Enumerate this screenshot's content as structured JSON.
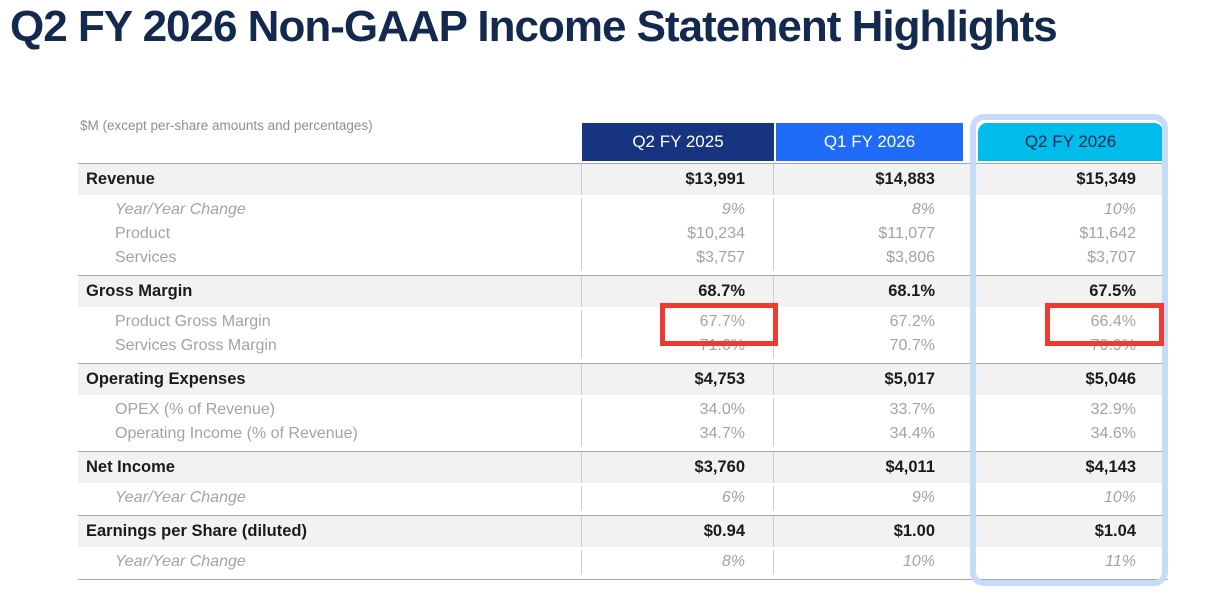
{
  "title": "Q2 FY 2026 Non-GAAP Income Statement Highlights",
  "note": "$M (except per-share amounts and percentages)",
  "table": {
    "columns": [
      "Q2 FY 2025",
      "Q1 FY 2026",
      "Q2 FY 2026"
    ],
    "highlighted_column": "Q2 FY 2026",
    "rows": [
      {
        "label": "Revenue",
        "type": "main",
        "values": [
          "$13,991",
          "$14,883",
          "$15,349"
        ]
      },
      {
        "label": "Year/Year Change",
        "type": "sub-italic",
        "values": [
          "9%",
          "8%",
          "10%"
        ]
      },
      {
        "label": "Product",
        "type": "sub",
        "values": [
          "$10,234",
          "$11,077",
          "$11,642"
        ]
      },
      {
        "label": "Services",
        "type": "sub",
        "values": [
          "$3,757",
          "$3,806",
          "$3,707"
        ]
      },
      {
        "label": "Gross Margin",
        "type": "main",
        "values": [
          "68.7%",
          "68.1%",
          "67.5%"
        ]
      },
      {
        "label": "Product Gross Margin",
        "type": "sub",
        "values": [
          "67.7%",
          "67.2%",
          "66.4%"
        ]
      },
      {
        "label": "Services Gross Margin",
        "type": "sub",
        "values": [
          "71.6%",
          "70.7%",
          "70.9%"
        ]
      },
      {
        "label": "Operating Expenses",
        "type": "main",
        "values": [
          "$4,753",
          "$5,017",
          "$5,046"
        ]
      },
      {
        "label": "OPEX (% of Revenue)",
        "type": "sub",
        "values": [
          "34.0%",
          "33.7%",
          "32.9%"
        ]
      },
      {
        "label": "Operating Income (% of Revenue)",
        "type": "sub",
        "values": [
          "34.7%",
          "34.4%",
          "34.6%"
        ]
      },
      {
        "label": "Net Income",
        "type": "main",
        "values": [
          "$3,760",
          "$4,011",
          "$4,143"
        ]
      },
      {
        "label": "Year/Year Change",
        "type": "sub-italic",
        "values": [
          "6%",
          "9%",
          "10%"
        ]
      },
      {
        "label": "Earnings per Share (diluted)",
        "type": "main",
        "values": [
          "$0.94",
          "$1.00",
          "$1.04"
        ]
      },
      {
        "label": "Year/Year Change",
        "type": "sub-italic",
        "values": [
          "8%",
          "10%",
          "11%"
        ]
      }
    ]
  },
  "annotations": {
    "red_boxes": [
      {
        "row_label": "Product Gross Margin",
        "column": "Q2 FY 2025",
        "value": "67.7%"
      },
      {
        "row_label": "Product Gross Margin",
        "column": "Q2 FY 2026",
        "value": "66.4%"
      }
    ]
  },
  "colors": {
    "title_text": "#132A4E",
    "header_q2fy2025_bg": "#16347F",
    "header_q1fy2026_bg": "#1E6BF8",
    "header_q2fy2026_bg": "#00BCEB",
    "header_q2fy2026_text": "#0D2A4D",
    "highlight_column_border": "#C6DBF8",
    "red_box_border": "#EE3B30",
    "main_row_bg": "#F2F2F2",
    "section_divider": "#A8A8A8",
    "muted_text": "#A3A3A3"
  }
}
